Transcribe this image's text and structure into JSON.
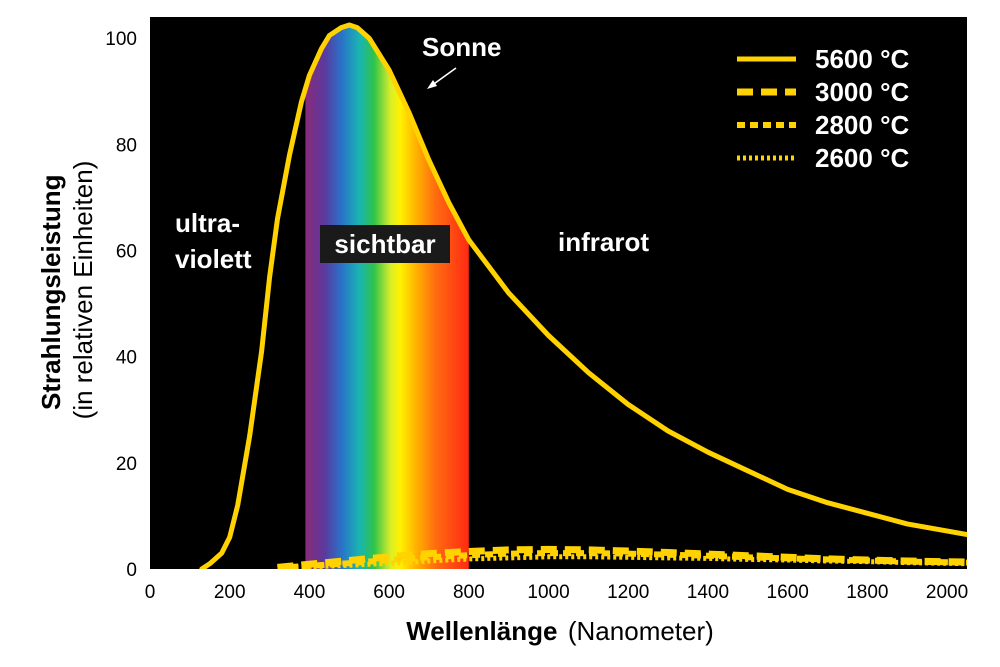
{
  "chart_data": {
    "type": "line",
    "title": "",
    "xlabel_bold": "Wellenlänge",
    "xlabel_rest": "(Nanometer)",
    "ylabel_bold": "Strahlungsleistung",
    "ylabel_rest": "(in relativen Einheiten)",
    "xlim": [
      0,
      2050
    ],
    "ylim": [
      0,
      104
    ],
    "x_ticks": [
      0,
      200,
      400,
      600,
      800,
      1000,
      1200,
      1400,
      1600,
      1800,
      2000
    ],
    "y_ticks": [
      0,
      20,
      40,
      60,
      80,
      100
    ],
    "grid": false,
    "background": "#000000",
    "curve_color": "#ffd200",
    "legend_position": "top-right",
    "visible_band": {
      "x_start": 390,
      "x_end": 800,
      "label": "sichtbar"
    },
    "region_labels": {
      "uv_line1": "ultra-",
      "uv_line2": "violett",
      "ir": "infrarot"
    },
    "annotation": {
      "text": "Sonne"
    },
    "series": [
      {
        "name": "5600 °C",
        "style": "solid",
        "x": [
          130,
          150,
          180,
          200,
          220,
          250,
          280,
          300,
          320,
          350,
          380,
          400,
          430,
          450,
          480,
          500,
          520,
          550,
          600,
          650,
          700,
          750,
          800,
          900,
          1000,
          1100,
          1200,
          1300,
          1400,
          1500,
          1600,
          1700,
          1800,
          1900,
          2050
        ],
        "y": [
          0,
          1,
          3,
          6,
          12,
          25,
          41,
          55,
          66,
          78,
          88,
          93,
          98,
          100.5,
          102,
          102.5,
          102,
          100,
          94,
          86,
          77,
          69,
          62,
          52,
          44,
          37,
          31,
          26,
          22,
          18.5,
          15,
          12.5,
          10.5,
          8.5,
          6.5
        ]
      },
      {
        "name": "3000 °C",
        "style": "dashed",
        "x": [
          320,
          400,
          500,
          600,
          700,
          800,
          900,
          1000,
          1100,
          1200,
          1300,
          1400,
          1500,
          1600,
          1700,
          1800,
          1900,
          2050
        ],
        "y": [
          0.3,
          0.9,
          1.6,
          2.3,
          2.9,
          3.3,
          3.6,
          3.7,
          3.6,
          3.4,
          3.1,
          2.8,
          2.5,
          2.2,
          1.9,
          1.7,
          1.5,
          1.3
        ]
      },
      {
        "name": "2800 °C",
        "style": "dashed-short",
        "x": [
          320,
          400,
          500,
          600,
          700,
          800,
          900,
          1000,
          1100,
          1200,
          1300,
          1400,
          1500,
          1600,
          1700,
          1800,
          1900,
          2050
        ],
        "y": [
          0.2,
          0.6,
          1.1,
          1.7,
          2.2,
          2.6,
          2.9,
          3.0,
          3.0,
          2.9,
          2.7,
          2.5,
          2.2,
          2.0,
          1.8,
          1.6,
          1.4,
          1.2
        ]
      },
      {
        "name": "2600 °C",
        "style": "dotted",
        "x": [
          320,
          400,
          500,
          600,
          700,
          800,
          900,
          1000,
          1100,
          1200,
          1300,
          1400,
          1500,
          1600,
          1700,
          1800,
          1900,
          2050
        ],
        "y": [
          0.1,
          0.4,
          0.7,
          1.1,
          1.5,
          1.9,
          2.1,
          2.3,
          2.3,
          2.2,
          2.1,
          2.0,
          1.8,
          1.7,
          1.5,
          1.4,
          1.2,
          1.0
        ]
      }
    ]
  }
}
